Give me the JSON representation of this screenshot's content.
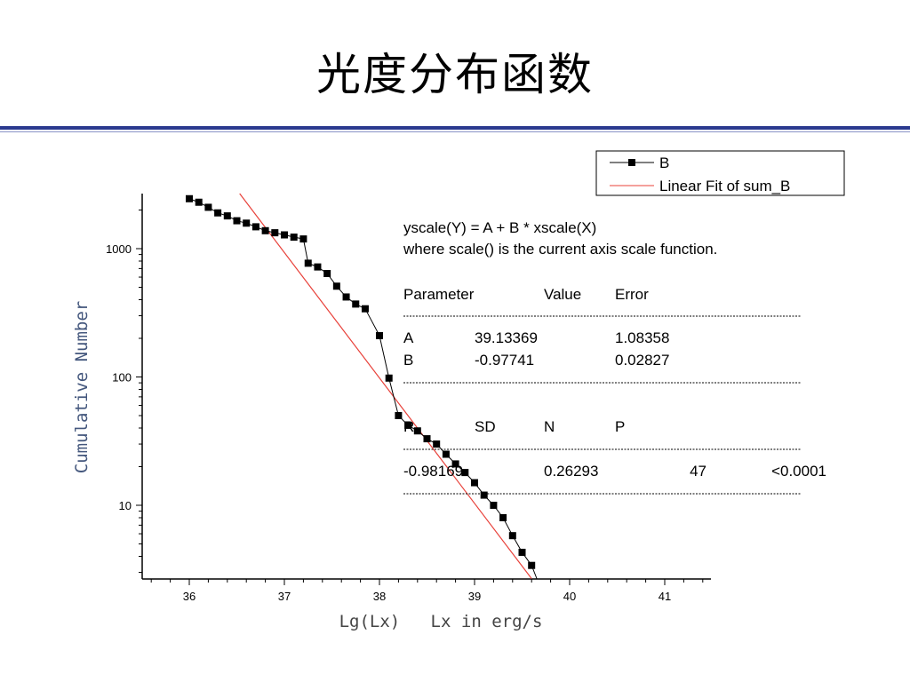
{
  "slide": {
    "title": "光度分布函数"
  },
  "chart_data": {
    "type": "scatter",
    "xlabel": "Lg(Lx)   Lx in erg/s",
    "ylabel": "Cumulative Number",
    "xlim": [
      35.55,
      41.55
    ],
    "ylim": [
      3,
      3000
    ],
    "y_scale": "log",
    "x_ticks": [
      36,
      37,
      38,
      39,
      40,
      41
    ],
    "y_ticks": [
      10,
      100,
      1000
    ],
    "grid": false,
    "legend_position": "top-right",
    "series": [
      {
        "name": "B",
        "type": "line+markers",
        "color": "#000000",
        "x": [
          36.0,
          36.1,
          36.2,
          36.3,
          36.4,
          36.5,
          36.6,
          36.7,
          36.8,
          36.9,
          37.0,
          37.1,
          37.2,
          37.25,
          37.35,
          37.45,
          37.55,
          37.65,
          37.75,
          37.85,
          38.0,
          38.1,
          38.2,
          38.3,
          38.4,
          38.5,
          38.6,
          38.7,
          38.8,
          38.9,
          39.0,
          39.1,
          39.2,
          39.3,
          39.4,
          39.5,
          39.6
        ],
        "y": [
          2450,
          2300,
          2100,
          1900,
          1800,
          1650,
          1580,
          1480,
          1380,
          1330,
          1280,
          1230,
          1190,
          770,
          720,
          640,
          510,
          420,
          370,
          340,
          210,
          98,
          50,
          42,
          38,
          33,
          30,
          25,
          21,
          18,
          15,
          12,
          10,
          8,
          5.8,
          4.3,
          3.4
        ]
      },
      {
        "name": "Linear Fit of sum_B",
        "type": "line",
        "color": "#e8413a",
        "intercept": 39.13369,
        "slope": -0.97741,
        "x_range": [
          36.5,
          39.6
        ]
      }
    ],
    "annotation": {
      "formula_line1": "yscale(Y) = A + B * xscale(X)",
      "formula_line2": "where scale() is the current axis scale function.",
      "param_header": [
        "Parameter",
        "Value",
        "Error"
      ],
      "params": [
        [
          "A",
          "39.13369",
          "1.08358"
        ],
        [
          "B",
          "-0.97741",
          "0.02827"
        ]
      ],
      "stats_header": [
        "R",
        "SD",
        "N",
        "P"
      ],
      "stats": [
        "-0.98169",
        "0.26293",
        "47",
        "<0.0001"
      ]
    }
  }
}
